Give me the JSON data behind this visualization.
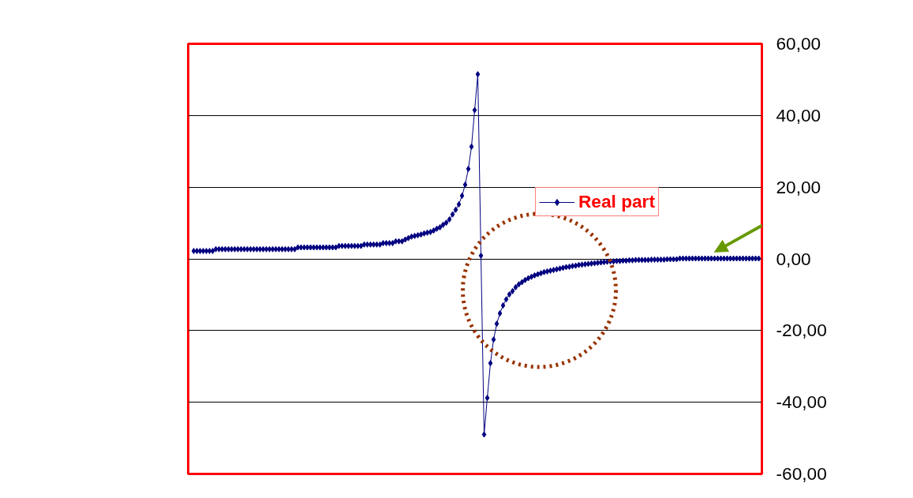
{
  "chart_data": {
    "type": "line",
    "categories": [
      null,
      null,
      null,
      null,
      null,
      null,
      null,
      null,
      null,
      null,
      null,
      null,
      null,
      null,
      null,
      null,
      null,
      null,
      null,
      null,
      null,
      null,
      null,
      null,
      null,
      null,
      null,
      null,
      null,
      null,
      null,
      null,
      null,
      null,
      null,
      null,
      null,
      null,
      null,
      null,
      null,
      null,
      null,
      null,
      null,
      null,
      null,
      null,
      null,
      null,
      null,
      null,
      null,
      null,
      null,
      null,
      null,
      null,
      null,
      null,
      null,
      null,
      null,
      null,
      null,
      null,
      null,
      null,
      null,
      null,
      null,
      null,
      null,
      null,
      null,
      null,
      null,
      null,
      null,
      null,
      null,
      null,
      null,
      null,
      null,
      null,
      null,
      null,
      null,
      null,
      null,
      null,
      null,
      null,
      null,
      null,
      null,
      null,
      null,
      null,
      null,
      null,
      null,
      null,
      null,
      null,
      null,
      null,
      null,
      null,
      null,
      null,
      null,
      null,
      null,
      null,
      null,
      null,
      null,
      null,
      null,
      null,
      null,
      null,
      null,
      null,
      null,
      null,
      null,
      null,
      null,
      null,
      null,
      null,
      null,
      null,
      null,
      null,
      null,
      null,
      null,
      null,
      null,
      null,
      null,
      null,
      null,
      null,
      null,
      null,
      null,
      null,
      null,
      null,
      null,
      null,
      null,
      null,
      null,
      null,
      null,
      null,
      null,
      null,
      null,
      null,
      null,
      null,
      null,
      null,
      null,
      null,
      null,
      null,
      null,
      null,
      null,
      null,
      null,
      null
    ],
    "series": [
      {
        "name": "Real part",
        "color": "#000080",
        "values": [
          2.2,
          2.2,
          2.2,
          2.2,
          2.2,
          2.2,
          2.2,
          2.7,
          2.7,
          2.7,
          2.7,
          2.7,
          2.7,
          2.7,
          2.7,
          2.7,
          2.7,
          2.7,
          2.7,
          2.7,
          2.7,
          2.7,
          2.7,
          2.7,
          2.7,
          2.7,
          2.7,
          2.7,
          2.7,
          2.7,
          2.7,
          2.7,
          2.7,
          3.2,
          3.2,
          3.2,
          3.2,
          3.2,
          3.2,
          3.2,
          3.2,
          3.2,
          3.2,
          3.2,
          3.2,
          3.2,
          3.6,
          3.6,
          3.6,
          3.6,
          3.6,
          3.6,
          3.6,
          3.6,
          4.0,
          4.0,
          4.0,
          4.0,
          4.0,
          4.0,
          4.4,
          4.4,
          4.4,
          4.4,
          4.9,
          4.9,
          4.9,
          5.4,
          5.8,
          6.2,
          6.4,
          6.6,
          6.8,
          7.1,
          7.3,
          7.5,
          7.9,
          8.4,
          8.8,
          9.5,
          10.1,
          11.0,
          12.4,
          13.7,
          15.2,
          17.6,
          20.7,
          25.1,
          31.3,
          41.5,
          51.5,
          0.9,
          -49,
          -38.8,
          -29.1,
          -22.5,
          -18.1,
          -15.2,
          -13,
          -11.3,
          -9.9,
          -9.0,
          -7.9,
          -7.1,
          -6.5,
          -5.9,
          -5.4,
          -5.0,
          -4.6,
          -4.3,
          -4.0,
          -3.7,
          -3.5,
          -3.3,
          -3.1,
          -2.9,
          -2.7,
          -2.5,
          -2.3,
          -2.2,
          -2.0,
          -1.9,
          -1.7,
          -1.6,
          -1.5,
          -1.4,
          -1.3,
          -1.2,
          -1.1,
          -1.0,
          -0.9,
          -0.8,
          -0.7,
          -0.7,
          -0.6,
          -0.6,
          -0.5,
          -0.5,
          -0.4,
          -0.4,
          -0.3,
          -0.3,
          -0.3,
          -0.3,
          -0.3,
          -0.2,
          -0.2,
          -0.2,
          -0.2,
          -0.2,
          -0.1,
          -0.1,
          -0.1,
          -0.1,
          0.1,
          0.1,
          0.1,
          0.1,
          0.1,
          0.1,
          0.1,
          0.1,
          0.1,
          0.1,
          0.1,
          0.1,
          0.1,
          0.1,
          0.1,
          0.1,
          0.1,
          0.1,
          0.1,
          0.1,
          0.1,
          0.1,
          0.1,
          0.1,
          0.1,
          0.1
        ]
      }
    ],
    "ylim": [
      -60,
      60
    ],
    "yticks": [
      {
        "value": -60,
        "label": "-60,00"
      },
      {
        "value": -40,
        "label": "-40,00"
      },
      {
        "value": -20,
        "label": "-20,00"
      },
      {
        "value": 0,
        "label": "0,00"
      },
      {
        "value": 20,
        "label": "20,00"
      },
      {
        "value": 40,
        "label": "40,00"
      },
      {
        "value": 60,
        "label": "60,00"
      }
    ],
    "grid": "y",
    "legend": "right",
    "marker": "diamond",
    "line_style": "solid",
    "tick_labels": "y"
  }
}
